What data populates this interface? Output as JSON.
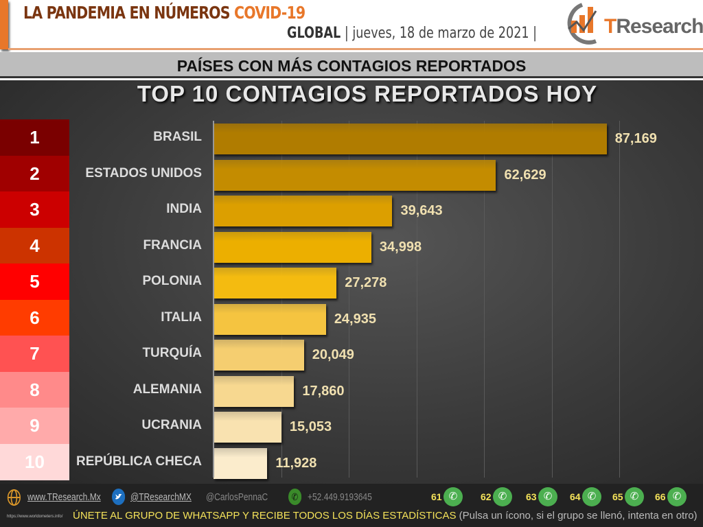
{
  "header": {
    "title_main": "LA PANDEMIA EN NÚMEROS",
    "title_accent": "COVID-19",
    "scope": "GLOBAL",
    "date": "jueves, 18 de marzo de 2021",
    "logo": "TResearch"
  },
  "subtitle": "PAÍSES CON MÁS CONTAGIOS REPORTADOS",
  "chart_data": {
    "type": "bar",
    "orientation": "horizontal",
    "title": "TOP 10 CONTAGIOS REPORTADOS HOY",
    "categories": [
      "BRASIL",
      "ESTADOS UNIDOS",
      "INDIA",
      "FRANCIA",
      "POLONIA",
      "ITALIA",
      "TURQUÍA",
      "ALEMANIA",
      "UCRANIA",
      "REPÚBLICA CHECA"
    ],
    "values": [
      87169,
      62629,
      39643,
      34998,
      27278,
      24935,
      20049,
      17860,
      15053,
      11928
    ],
    "labels": [
      "87,169",
      "62,629",
      "39,643",
      "34,998",
      "27,278",
      "24,935",
      "20,049",
      "17,860",
      "15,053",
      "11,928"
    ],
    "ranks": [
      "1",
      "2",
      "3",
      "4",
      "5",
      "6",
      "7",
      "8",
      "9",
      "10"
    ],
    "rank_colors": [
      "#7a0000",
      "#a00000",
      "#cc0000",
      "#cc3300",
      "#ff0000",
      "#ff3c00",
      "#ff5252",
      "#ff8a8a",
      "#ffaaaa",
      "#ffd9d9"
    ],
    "bar_colors": [
      "#b07c00",
      "#c48c00",
      "#dc9f00",
      "#ecaf00",
      "#f4bb10",
      "#f5c440",
      "#f5ce70",
      "#f7d890",
      "#f9e2b0",
      "#fbeccc"
    ],
    "xlim": [
      0,
      100000
    ],
    "grid": true,
    "grid_step": 15000
  },
  "footer": {
    "website": "www.TResearch.Mx",
    "twitter": "@TResearchMX",
    "user": "@CarlosPennaC",
    "phone": "+52.449.9193645",
    "groups": [
      "61",
      "62",
      "63",
      "64",
      "65",
      "66"
    ],
    "join": "ÚNETE AL GRUPO DE WHATSAPP Y RECIBE TODOS LOS DÍAS ESTADÍSTICAS",
    "join_note": "(Pulsa un ícono, si el grupo se llenó, intenta en otro)",
    "source": "https://www.worldometers.info/"
  }
}
